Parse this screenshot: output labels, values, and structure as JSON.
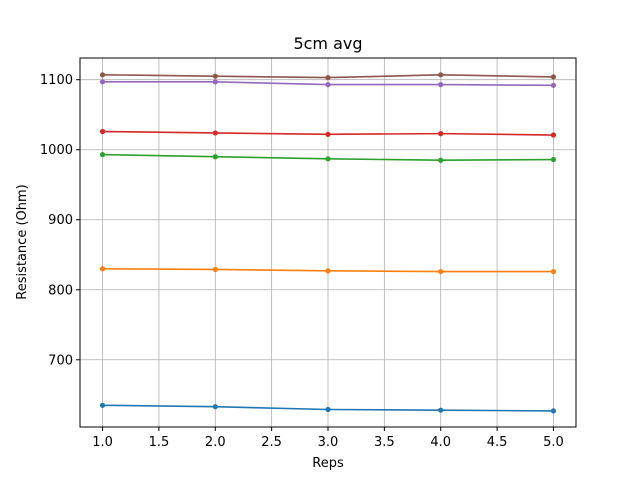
{
  "chart_data": {
    "type": "line",
    "title": "5cm avg",
    "xlabel": "Reps",
    "ylabel": "Resistance (Ohm)",
    "xlim": [
      0.8,
      5.2
    ],
    "ylim": [
      604,
      1131
    ],
    "grid": true,
    "x": [
      1.0,
      2.0,
      3.0,
      4.0,
      5.0
    ],
    "xticks": [
      1.0,
      1.5,
      2.0,
      2.5,
      3.0,
      3.5,
      4.0,
      4.5,
      5.0
    ],
    "xtick_labels": [
      "1.0",
      "1.5",
      "2.0",
      "2.5",
      "3.0",
      "3.5",
      "4.0",
      "4.5",
      "5.0"
    ],
    "yticks": [
      700,
      800,
      900,
      1000,
      1100
    ],
    "ytick_labels": [
      "700",
      "800",
      "900",
      "1000",
      "1100"
    ],
    "series": [
      {
        "color": "#1f77b4",
        "values": [
          635,
          633,
          629,
          628,
          627
        ]
      },
      {
        "color": "#ff7f0e",
        "values": [
          830,
          829,
          827,
          826,
          826
        ]
      },
      {
        "color": "#2ca02c",
        "values": [
          993,
          990,
          987,
          985,
          986
        ]
      },
      {
        "color": "#d62728",
        "values": [
          1026,
          1024,
          1022,
          1023,
          1021
        ]
      },
      {
        "color": "#9467bd",
        "values": [
          1097,
          1097,
          1093,
          1093,
          1092
        ]
      },
      {
        "color": "#8c564b",
        "values": [
          1107,
          1105,
          1103,
          1107,
          1104
        ]
      }
    ]
  }
}
